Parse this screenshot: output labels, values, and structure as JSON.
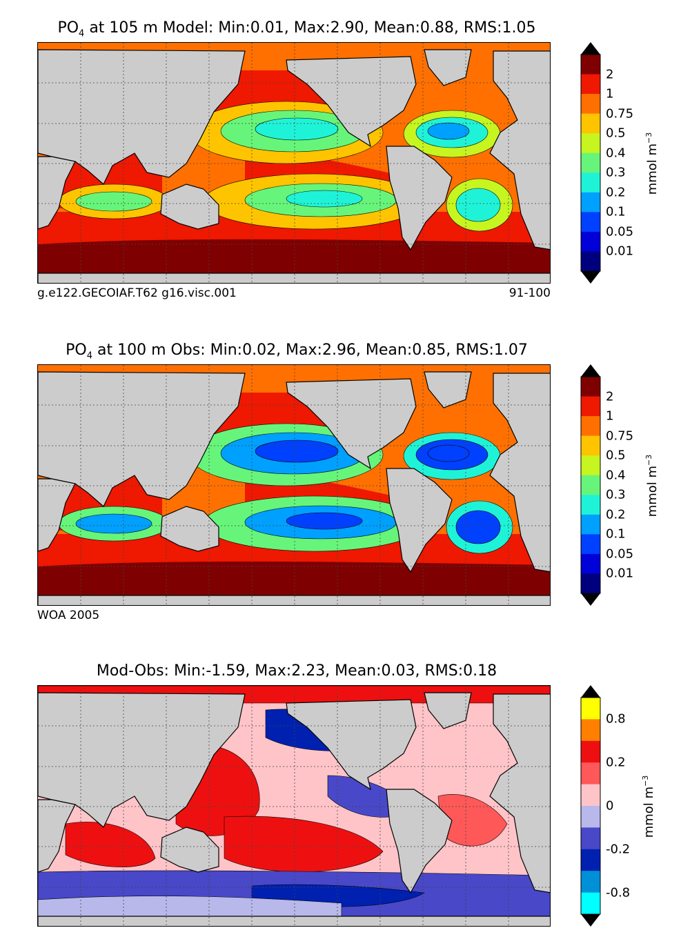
{
  "figure": {
    "panels": [
      {
        "title_prefix": "PO",
        "title_sub": "4",
        "title_rest": " at 105 m Model: Min:0.01, Max:2.90, Mean:0.88, RMS:1.05",
        "footer_left": "g.e122.GECOIAF.T62 g16.visc.001",
        "footer_right": "91-100"
      },
      {
        "title_prefix": "PO",
        "title_sub": "4",
        "title_rest": " at 100 m Obs: Min:0.02, Max:2.96, Mean:0.85, RMS:1.07",
        "footer_left": "WOA 2005",
        "footer_right": ""
      },
      {
        "title_prefix": "",
        "title_sub": "",
        "title_rest": "Mod-Obs: Min:-1.59, Max:2.23, Mean:0.03, RMS:0.18",
        "footer_left": "",
        "footer_right": ""
      }
    ],
    "unit_base": "mmol m",
    "unit_exp": "−3",
    "colors": {
      "land": "#cccccc",
      "abs_scale": [
        "#00007f",
        "#0000d8",
        "#0040ff",
        "#00a0ff",
        "#1ff3d7",
        "#66f57a",
        "#c6f51f",
        "#ffc400",
        "#ff7000",
        "#ef1800",
        "#7f0000"
      ],
      "diff_scale": [
        "#00ffff",
        "#0090d8",
        "#0020b0",
        "#4848c8",
        "#b8b8ea",
        "#ffc4c8",
        "#ff5858",
        "#ee1010",
        "#ff8000",
        "#ffff00"
      ]
    }
  },
  "chart_data": [
    {
      "type": "heatmap",
      "title": "PO4 at 105 m Model: Min:0.01, Max:2.90, Mean:0.88, RMS:1.05",
      "variable": "PO4",
      "depth_m": 105,
      "source": "Model",
      "stats": {
        "min": 0.01,
        "max": 2.9,
        "mean": 0.88,
        "rms": 1.05
      },
      "colorbar_levels": [
        0.01,
        0.05,
        0.1,
        0.2,
        0.3,
        0.4,
        0.5,
        0.75,
        1,
        2
      ],
      "colorbar_labels": [
        "2",
        "1",
        "0.75",
        "0.5",
        "0.4",
        "0.3",
        "0.2",
        "0.1",
        "0.05",
        "0.01"
      ],
      "extend": "both",
      "units": "mmol m^-3",
      "xlabel": "",
      "ylabel": ""
    },
    {
      "type": "heatmap",
      "title": "PO4 at 100 m Obs: Min:0.02, Max:2.96, Mean:0.85, RMS:1.07",
      "variable": "PO4",
      "depth_m": 100,
      "source": "Obs",
      "stats": {
        "min": 0.02,
        "max": 2.96,
        "mean": 0.85,
        "rms": 1.07
      },
      "colorbar_levels": [
        0.01,
        0.05,
        0.1,
        0.2,
        0.3,
        0.4,
        0.5,
        0.75,
        1,
        2
      ],
      "colorbar_labels": [
        "2",
        "1",
        "0.75",
        "0.5",
        "0.4",
        "0.3",
        "0.2",
        "0.1",
        "0.05",
        "0.01"
      ],
      "extend": "both",
      "units": "mmol m^-3",
      "xlabel": "",
      "ylabel": ""
    },
    {
      "type": "heatmap",
      "title": "Mod-Obs: Min:-1.59, Max:2.23, Mean:0.03, RMS:0.18",
      "variable": "PO4 difference",
      "stats": {
        "min": -1.59,
        "max": 2.23,
        "mean": 0.03,
        "rms": 0.18
      },
      "colorbar_labels": [
        "0.8",
        "0.2",
        "0",
        "-0.2",
        "-0.8"
      ],
      "extend": "both",
      "units": "mmol m^-3",
      "xlabel": "",
      "ylabel": ""
    }
  ]
}
